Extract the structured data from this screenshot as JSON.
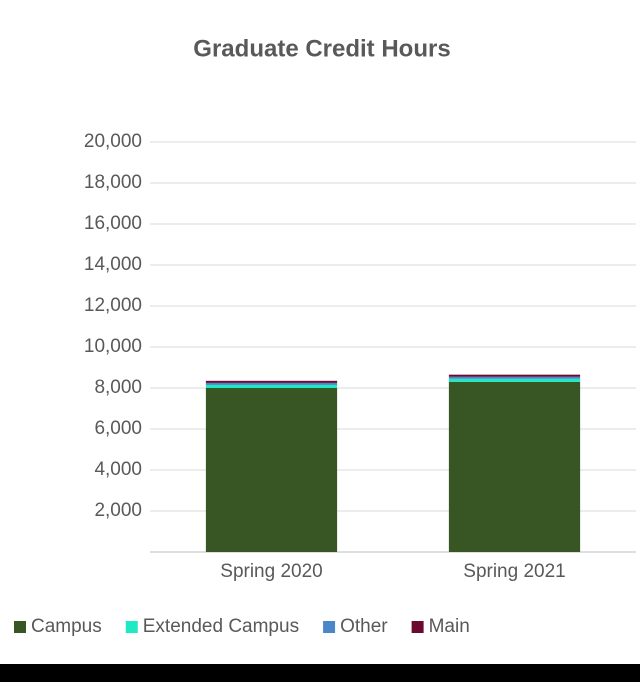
{
  "chart_data": {
    "type": "bar",
    "stacked": true,
    "title": "Graduate Credit Hours",
    "categories": [
      "Spring 2020",
      "Spring 2021"
    ],
    "series": [
      {
        "name": "Campus",
        "color": "#375623",
        "values": [
          8000,
          8300
        ]
      },
      {
        "name": "Extended Campus",
        "color": "#1de9c4",
        "values": [
          150,
          150
        ]
      },
      {
        "name": "Other",
        "color": "#4a86c8",
        "values": [
          100,
          100
        ]
      },
      {
        "name": "Main",
        "color": "#6b0a2e",
        "values": [
          100,
          100
        ]
      }
    ],
    "ylim": [
      0,
      20000
    ],
    "yticks": [
      {
        "value": 2000,
        "label": "2,000"
      },
      {
        "value": 4000,
        "label": "4,000"
      },
      {
        "value": 6000,
        "label": "6,000"
      },
      {
        "value": 8000,
        "label": "8,000"
      },
      {
        "value": 10000,
        "label": "10,000"
      },
      {
        "value": 12000,
        "label": "12,000"
      },
      {
        "value": 14000,
        "label": "14,000"
      },
      {
        "value": 16000,
        "label": "16,000"
      },
      {
        "value": 18000,
        "label": "18,000"
      },
      {
        "value": 20000,
        "label": "20,000"
      }
    ],
    "grid": true,
    "legend": "bottom"
  }
}
